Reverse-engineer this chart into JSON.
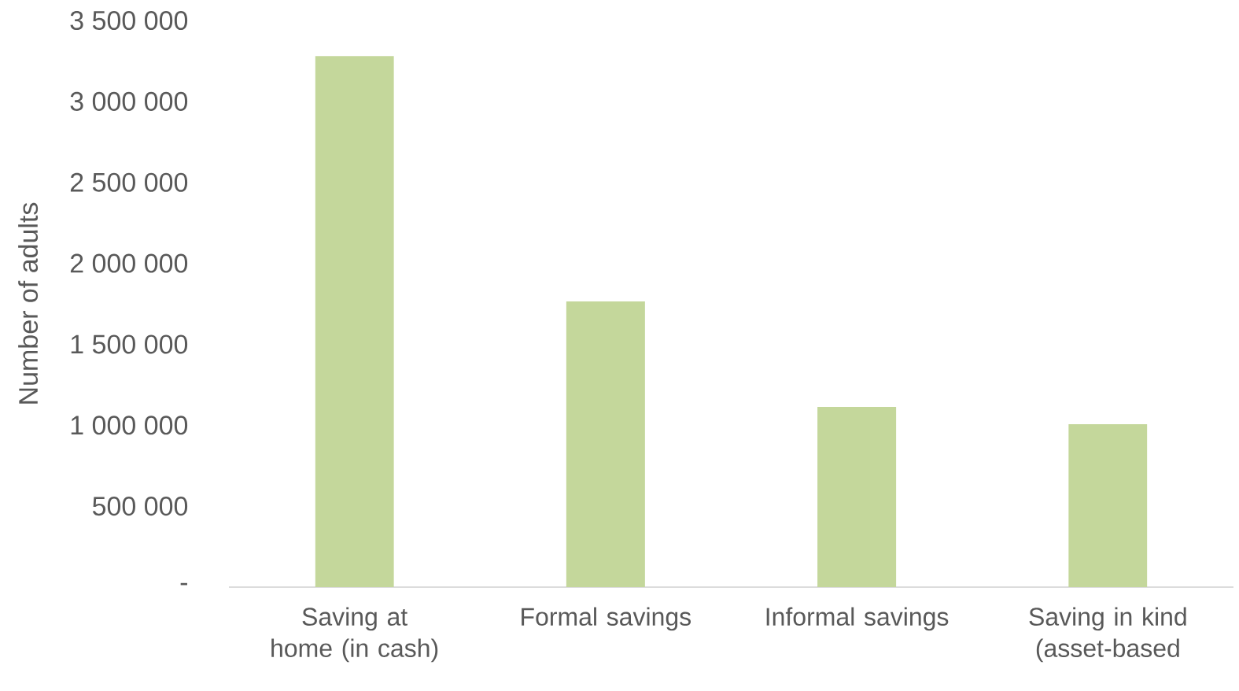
{
  "chart_data": {
    "type": "bar",
    "ylabel": "Number of adults",
    "categories": [
      "Saving at home (in cash)",
      "Formal savings",
      "Informal savings",
      "Saving in kind (asset-based"
    ],
    "values": [
      3280000,
      1765000,
      1113000,
      1006000
    ],
    "color": "#c4d79b",
    "ylim": [
      0,
      3500000
    ],
    "yticks": [
      {
        "value": 0,
        "label": "-"
      },
      {
        "value": 500000,
        "label": "500 000"
      },
      {
        "value": 1000000,
        "label": "1 000 000"
      },
      {
        "value": 1500000,
        "label": "1 500 000"
      },
      {
        "value": 2000000,
        "label": "2 000 000"
      },
      {
        "value": 2500000,
        "label": "2 500 000"
      },
      {
        "value": 3000000,
        "label": "3 000 000"
      },
      {
        "value": 3500000,
        "label": "3 500 000"
      }
    ],
    "grid": false
  }
}
